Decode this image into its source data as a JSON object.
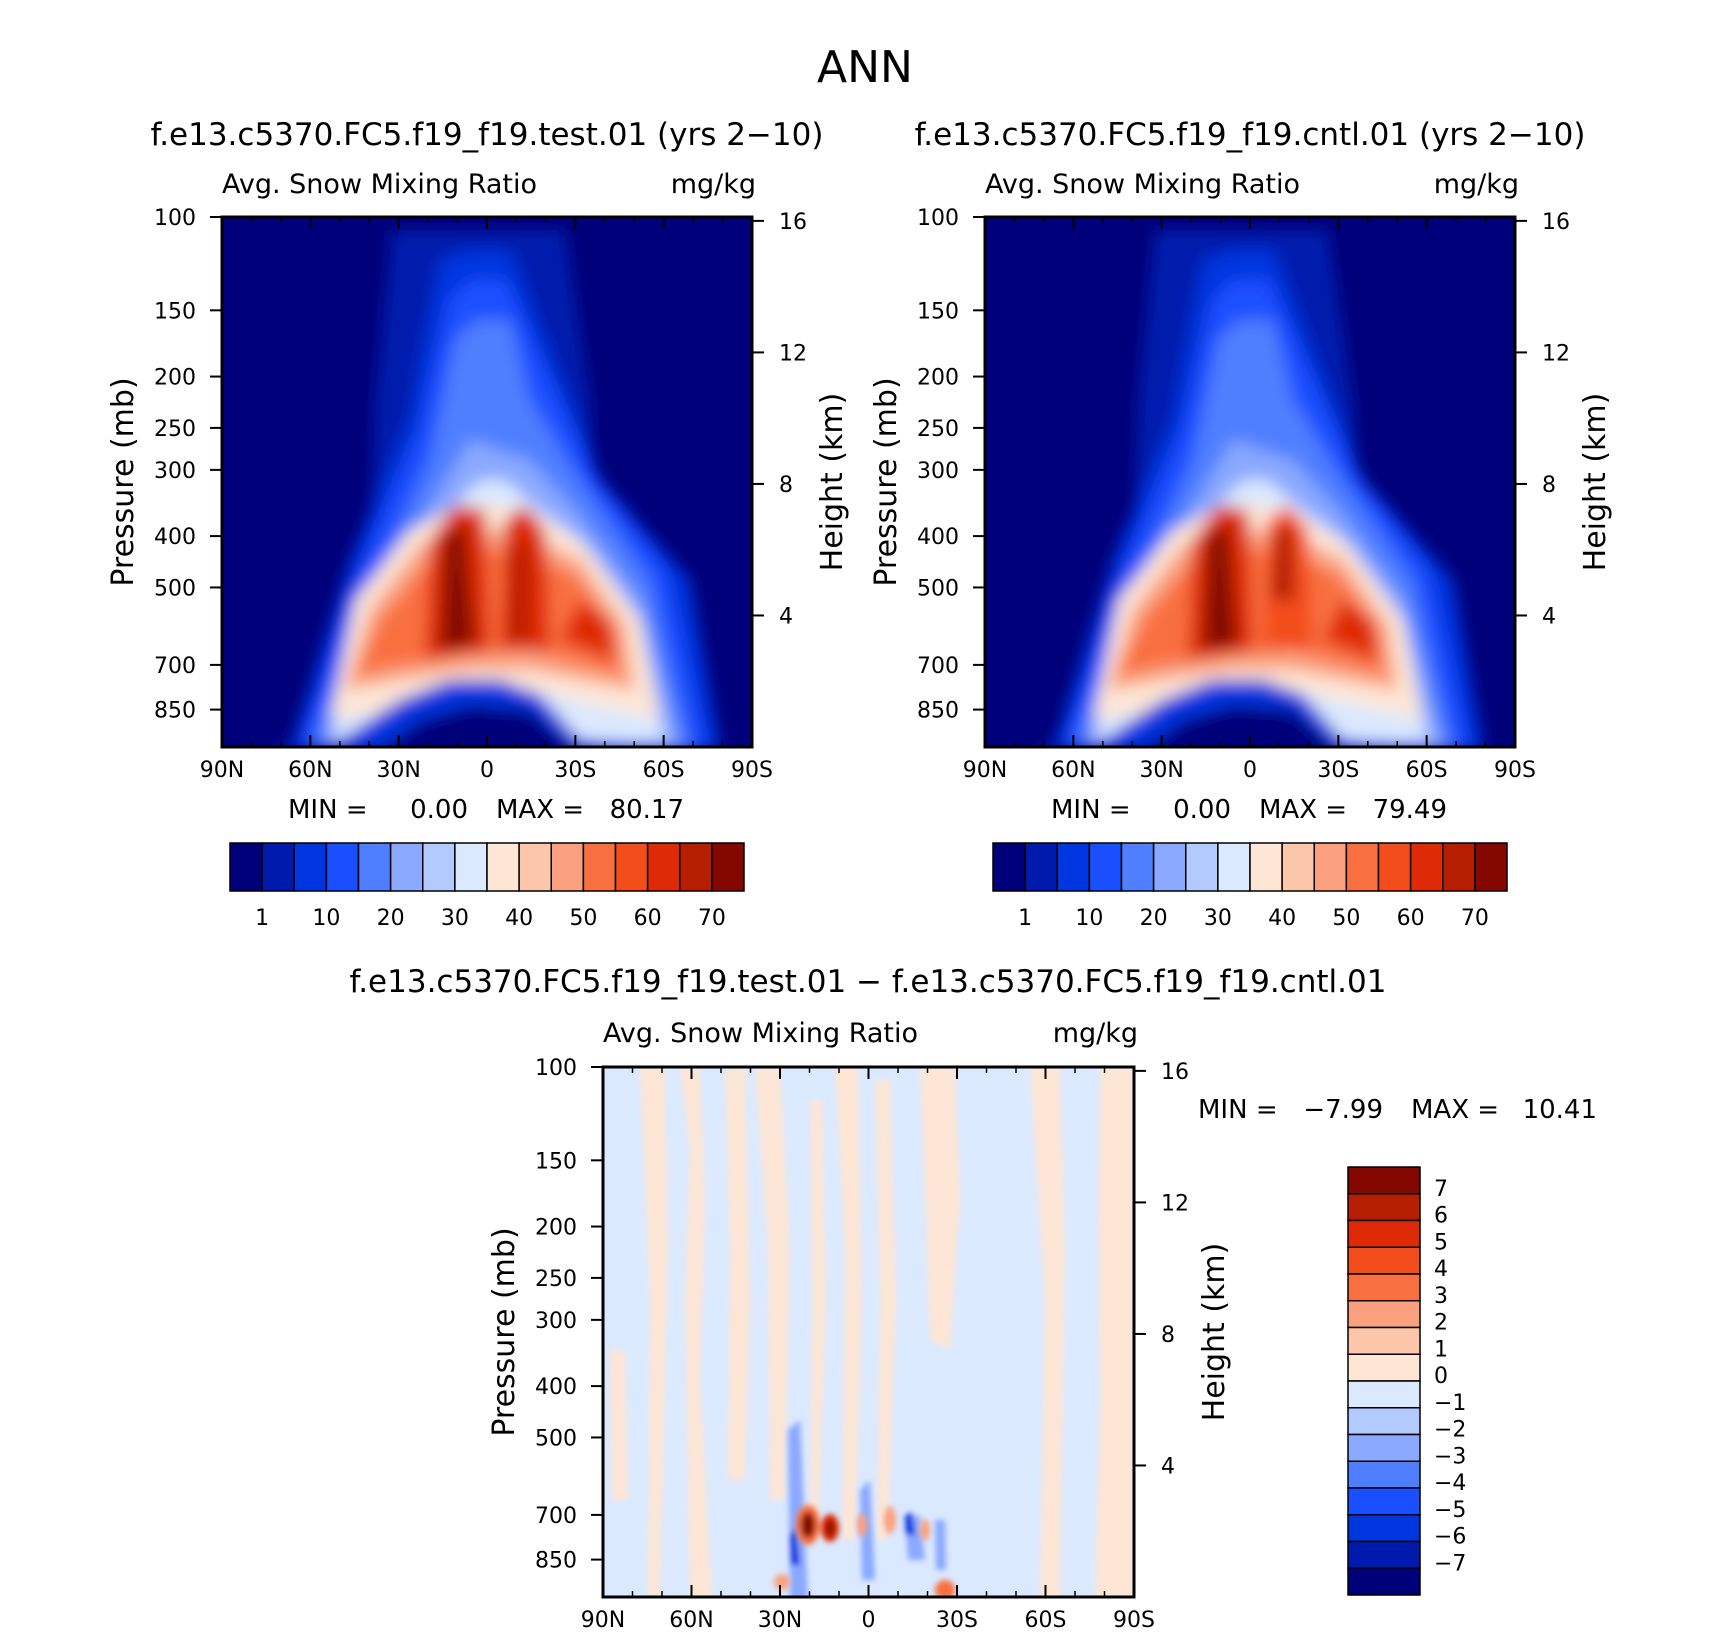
{
  "page": {
    "title": "ANN"
  },
  "legend_colors": [
    "#00007a",
    "#001aad",
    "#0036e0",
    "#1a4fff",
    "#4f7fff",
    "#8aa9ff",
    "#b3caff",
    "#dbe9ff",
    "#fde6d6",
    "#fcc6ab",
    "#fba07e",
    "#f97040",
    "#f44d1c",
    "#de2a06",
    "#b61e02",
    "#840700"
  ],
  "chart_data": [
    {
      "type": "heatmap",
      "title": "f.e13.c5370.FC5.f19_f19.test.01 (yrs 2-10)",
      "variable": "Avg. Snow Mixing Ratio",
      "units": "mg/kg",
      "ylabel": "Pressure (mb)",
      "ylabel_right": "Height (km)",
      "x_ticks": [
        "90N",
        "60N",
        "30N",
        "0",
        "30S",
        "60S",
        "90S"
      ],
      "y_ticks": [
        "100",
        "150",
        "200",
        "250",
        "300",
        "400",
        "500",
        "700",
        "850"
      ],
      "y_right_ticks": [
        "16",
        "12",
        "8",
        "4"
      ],
      "xlim": [
        90,
        -90
      ],
      "ylim": [
        1000,
        100
      ],
      "y_scale": "log",
      "stats": {
        "min_label": "MIN =",
        "min": "0.00",
        "max_label": "MAX =",
        "max": "80.17"
      },
      "levels": [
        1,
        5,
        10,
        15,
        20,
        25,
        30,
        35,
        40,
        45,
        50,
        55,
        60,
        65,
        70
      ],
      "colorbar_ticks": [
        "1",
        "10",
        "20",
        "30",
        "40",
        "50",
        "60",
        "70"
      ],
      "colorbar_orientation": "horizontal"
    },
    {
      "type": "heatmap",
      "title": "f.e13.c5370.FC5.f19_f19.cntl.01 (yrs 2-10)",
      "variable": "Avg. Snow Mixing Ratio",
      "units": "mg/kg",
      "ylabel": "Pressure (mb)",
      "ylabel_right": "Height (km)",
      "x_ticks": [
        "90N",
        "60N",
        "30N",
        "0",
        "30S",
        "60S",
        "90S"
      ],
      "y_ticks": [
        "100",
        "150",
        "200",
        "250",
        "300",
        "400",
        "500",
        "700",
        "850"
      ],
      "y_right_ticks": [
        "16",
        "12",
        "8",
        "4"
      ],
      "xlim": [
        90,
        -90
      ],
      "ylim": [
        1000,
        100
      ],
      "y_scale": "log",
      "stats": {
        "min_label": "MIN =",
        "min": "0.00",
        "max_label": "MAX =",
        "max": "79.49"
      },
      "levels": [
        1,
        5,
        10,
        15,
        20,
        25,
        30,
        35,
        40,
        45,
        50,
        55,
        60,
        65,
        70
      ],
      "colorbar_ticks": [
        "1",
        "10",
        "20",
        "30",
        "40",
        "50",
        "60",
        "70"
      ],
      "colorbar_orientation": "horizontal"
    },
    {
      "type": "heatmap",
      "title": "f.e13.c5370.FC5.f19_f19.test.01 - f.e13.c5370.FC5.f19_f19.cntl.01",
      "variable": "Avg. Snow Mixing Ratio",
      "units": "mg/kg",
      "ylabel": "Pressure (mb)",
      "ylabel_right": "Height (km)",
      "x_ticks": [
        "90N",
        "60N",
        "30N",
        "0",
        "30S",
        "60S",
        "90S"
      ],
      "y_ticks": [
        "100",
        "150",
        "200",
        "250",
        "300",
        "400",
        "500",
        "700",
        "850"
      ],
      "y_right_ticks": [
        "16",
        "12",
        "8",
        "4"
      ],
      "xlim": [
        90,
        -90
      ],
      "ylim": [
        1000,
        100
      ],
      "y_scale": "log",
      "stats": {
        "min_label": "MIN =",
        "min": "-7.99",
        "max_label": "MAX =",
        "max": "10.41"
      },
      "levels": [
        -7,
        -6,
        -5,
        -4,
        -3,
        -2,
        -1,
        0,
        1,
        2,
        3,
        4,
        5,
        6,
        7
      ],
      "colorbar_ticks": [
        "7",
        "6",
        "5",
        "4",
        "3",
        "2",
        "1",
        "0",
        "-1",
        "-2",
        "-3",
        "-4",
        "-5",
        "-6",
        "-7"
      ],
      "colorbar_orientation": "vertical"
    }
  ]
}
